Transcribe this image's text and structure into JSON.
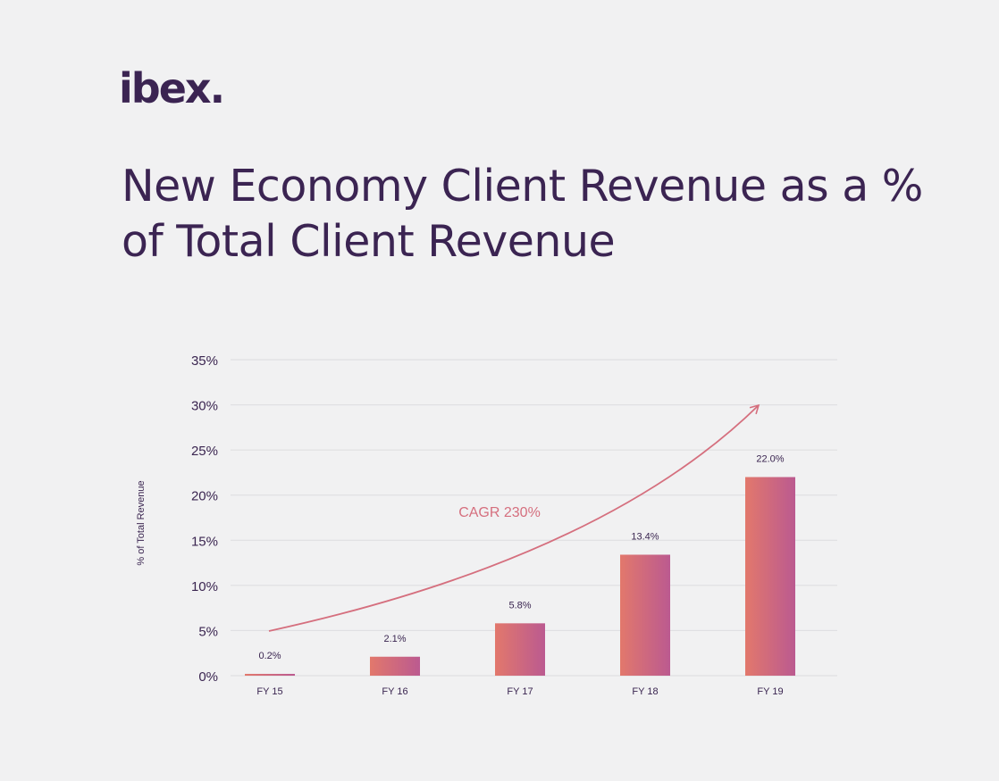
{
  "logo": {
    "text": "ibex."
  },
  "colors": {
    "title": "#3b2452",
    "bar_start": "#e2786c",
    "bar_end": "#bb5a90",
    "cagr": "#d56f7e",
    "grid": "#dcdcdf",
    "background": "#f1f1f2"
  },
  "chart_data": {
    "type": "bar",
    "title": "New Economy Client Revenue as a % of Total Client Revenue",
    "ylabel": "% of Total Revenue",
    "xlabel": "",
    "categories": [
      "FY 15",
      "FY 16",
      "FY 17",
      "FY 18",
      "FY 19"
    ],
    "values": [
      0.2,
      2.1,
      5.8,
      13.4,
      22.0
    ],
    "data_labels": [
      "0.2%",
      "2.1%",
      "5.8%",
      "13.4%",
      "22.0%"
    ],
    "ylim": [
      0,
      35
    ],
    "yticks": [
      0,
      5,
      10,
      15,
      20,
      25,
      30,
      35
    ],
    "ytick_labels": [
      "0%",
      "5%",
      "10%",
      "15%",
      "20%",
      "25%",
      "30%",
      "35%"
    ],
    "grid": true,
    "annotations": [
      {
        "text": "CAGR 230%",
        "type": "trend-arrow"
      }
    ]
  }
}
